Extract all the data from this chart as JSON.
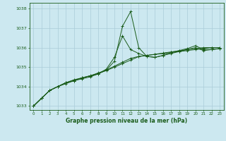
{
  "title": "Graphe pression niveau de la mer (hPa)",
  "background_color": "#cce8f0",
  "grid_color": "#aaccd8",
  "line_color": "#1a5c1a",
  "x_ticks": [
    0,
    1,
    2,
    3,
    4,
    5,
    6,
    7,
    8,
    9,
    10,
    11,
    12,
    13,
    14,
    15,
    16,
    17,
    18,
    19,
    20,
    21,
    22,
    23
  ],
  "ylim": [
    1032.8,
    1038.3
  ],
  "yticks": [
    1033,
    1034,
    1035,
    1036,
    1037,
    1038
  ],
  "series": [
    [
      1033.0,
      1033.4,
      1033.8,
      1034.0,
      1034.2,
      1034.3,
      1034.4,
      1034.5,
      1034.65,
      1034.85,
      1035.3,
      1037.1,
      1037.85,
      1036.0,
      1035.55,
      1035.5,
      1035.6,
      1035.75,
      1035.85,
      1035.95,
      1036.1,
      1035.9,
      1035.9,
      1035.95
    ],
    [
      1033.0,
      1033.4,
      1033.8,
      1034.0,
      1034.2,
      1034.35,
      1034.45,
      1034.55,
      1034.65,
      1034.9,
      1035.5,
      1036.6,
      1035.9,
      1035.7,
      1035.55,
      1035.5,
      1035.6,
      1035.7,
      1035.8,
      1035.9,
      1036.0,
      1035.85,
      1035.9,
      1035.95
    ],
    [
      1033.0,
      1033.4,
      1033.8,
      1034.0,
      1034.15,
      1034.3,
      1034.45,
      1034.55,
      1034.7,
      1034.85,
      1035.05,
      1035.25,
      1035.45,
      1035.55,
      1035.6,
      1035.65,
      1035.7,
      1035.75,
      1035.8,
      1035.85,
      1035.9,
      1035.95,
      1036.0,
      1036.0
    ],
    [
      1033.0,
      1033.4,
      1033.8,
      1034.0,
      1034.2,
      1034.32,
      1034.44,
      1034.56,
      1034.68,
      1034.82,
      1035.0,
      1035.18,
      1035.36,
      1035.54,
      1035.6,
      1035.66,
      1035.72,
      1035.78,
      1035.84,
      1035.9,
      1035.96,
      1036.0,
      1036.0,
      1036.0
    ]
  ]
}
